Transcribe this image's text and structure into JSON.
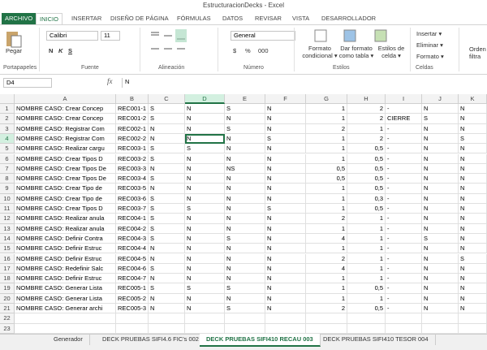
{
  "title_bar": {
    "title": "EstructuracionDecks - Excel"
  },
  "ribbon_tabs": [
    "ARCHIVO",
    "INICIO",
    "INSERTAR",
    "DISEÑO DE PÁGINA",
    "FÓRMULAS",
    "DATOS",
    "REVISAR",
    "VISTA",
    "DESARROLLADOR"
  ],
  "ribbon": {
    "paste": "Pegar",
    "font_name": "Calibri",
    "font_size": "11",
    "bold": "N",
    "italic": "K",
    "underline": "S",
    "number_format": "General",
    "currency": "$",
    "percent": "%",
    "thousands": "000",
    "conditional_format": [
      "Formato",
      "condicional ▾"
    ],
    "format_table": [
      "Dar formato",
      "como tabla ▾"
    ],
    "cell_styles": [
      "Estilos de",
      "celda ▾"
    ],
    "insert": "Insertar ▾",
    "delete": "Eliminar ▾",
    "format": "Formato ▾",
    "sort": [
      "Orden",
      "filtra"
    ],
    "groups": [
      "Portapapeles",
      "Fuente",
      "Alineación",
      "Número",
      "Estilos",
      "Celdas"
    ]
  },
  "formula_bar": {
    "name_box": "D4",
    "fx": "fx",
    "content": "N"
  },
  "sheet": {
    "columns": [
      "A",
      "B",
      "C",
      "D",
      "E",
      "F",
      "G",
      "H",
      "I",
      "J",
      "K"
    ],
    "row_headers": [
      "1",
      "2",
      "3",
      "4",
      "5",
      "6",
      "7",
      "8",
      "9",
      "10",
      "11",
      "12",
      "13",
      "14",
      "15",
      "16",
      "17",
      "18",
      "19",
      "20",
      "21",
      "22",
      "23"
    ],
    "rows": [
      [
        "NOMBRE CASO:  Crear Concep",
        "REC001-1",
        "S",
        "N",
        "S",
        "N",
        "1",
        "2",
        "-",
        "N",
        "N"
      ],
      [
        "NOMBRE CASO:  Crear Concep",
        "REC001-2",
        "S",
        "N",
        "N",
        "N",
        "1",
        "2",
        "CIERRE",
        "S",
        "N"
      ],
      [
        "NOMBRE CASO:  Registrar Com",
        "REC002-1",
        "N",
        "N",
        "S",
        "N",
        "2",
        "1",
        "-",
        "N",
        "N"
      ],
      [
        "NOMBRE CASO:  Registrar Com",
        "REC002-2",
        "N",
        "N",
        "N",
        "S",
        "1",
        "2",
        "-",
        "N",
        "S"
      ],
      [
        "NOMBRE CASO:  Realizar cargu",
        "REC003-1",
        "S",
        "S",
        "N",
        "N",
        "1",
        "0,5",
        "-",
        "N",
        "N"
      ],
      [
        "NOMBRE CASO:  Crear Tipos D",
        "REC003-2",
        "S",
        "N",
        "N",
        "N",
        "1",
        "0,5",
        "-",
        "N",
        "N"
      ],
      [
        "NOMBRE CASO:  Crear Tipos De",
        "REC003-3",
        "N",
        "N",
        "NS",
        "N",
        "0,5",
        "0,5",
        "-",
        "N",
        "N"
      ],
      [
        "NOMBRE CASO:  Crear Tipos De",
        "REC003-4",
        "S",
        "N",
        "N",
        "N",
        "0,5",
        "0,5",
        "-",
        "N",
        "N"
      ],
      [
        "NOMBRE CASO:  Crear Tipo de",
        "REC003-5",
        "N",
        "N",
        "N",
        "N",
        "1",
        "0,5",
        "-",
        "N",
        "N"
      ],
      [
        "NOMBRE CASO:  Crear Tipo de",
        "REC003-6",
        "S",
        "N",
        "N",
        "N",
        "1",
        "0,3",
        "-",
        "N",
        "N"
      ],
      [
        "NOMBRE CASO:  Crear Tipos D",
        "REC003-7",
        "S",
        "S",
        "N",
        "S",
        "1",
        "0,5",
        "-",
        "N",
        "N"
      ],
      [
        "NOMBRE CASO:  Realizar anula",
        "REC004-1",
        "S",
        "N",
        "N",
        "N",
        "2",
        "1",
        "-",
        "N",
        "N"
      ],
      [
        "NOMBRE CASO:  Realizar anula",
        "REC004-2",
        "S",
        "N",
        "N",
        "N",
        "1",
        "1",
        "-",
        "N",
        "N"
      ],
      [
        "NOMBRE CASO:  Definir Contra",
        "REC004-3",
        "S",
        "N",
        "S",
        "N",
        "4",
        "1",
        "-",
        "S",
        "N"
      ],
      [
        "NOMBRE CASO:  Definir Estruc",
        "REC004-4",
        "N",
        "N",
        "N",
        "N",
        "1",
        "1",
        "-",
        "N",
        "N"
      ],
      [
        "NOMBRE CASO:  Definir Estruc",
        "REC004-5",
        "N",
        "N",
        "N",
        "N",
        "2",
        "1",
        "-",
        "N",
        "S"
      ],
      [
        "NOMBRE CASO:  Redefinir Salc",
        "REC004-6",
        "S",
        "N",
        "N",
        "N",
        "4",
        "1",
        "-",
        "N",
        "N"
      ],
      [
        "NOMBRE CASO:  Definir Estruc",
        "REC004-7",
        "N",
        "N",
        "N",
        "N",
        "1",
        "1",
        "-",
        "N",
        "N"
      ],
      [
        "NOMBRE CASO:  Generar Lista",
        "REC005-1",
        "S",
        "S",
        "S",
        "N",
        "1",
        "0,5",
        "-",
        "N",
        "N"
      ],
      [
        "NOMBRE CASO:  Generar Lista",
        "REC005-2",
        "N",
        "N",
        "N",
        "N",
        "1",
        "1",
        "-",
        "N",
        "N"
      ],
      [
        "NOMBRE CASO:  Generar archi",
        "REC005-3",
        "N",
        "N",
        "S",
        "N",
        "2",
        "0,5",
        "-",
        "N",
        "N"
      ]
    ]
  },
  "sheet_tabs": [
    "Generador",
    "DECK PRUEBAS SIFI4.6 FIC's 002",
    "DECK PRUEBAS SIFI410 RECAU 003",
    "DECK PRUEBAS SIFI410 TESOR 004"
  ],
  "active_sheet": 2
}
